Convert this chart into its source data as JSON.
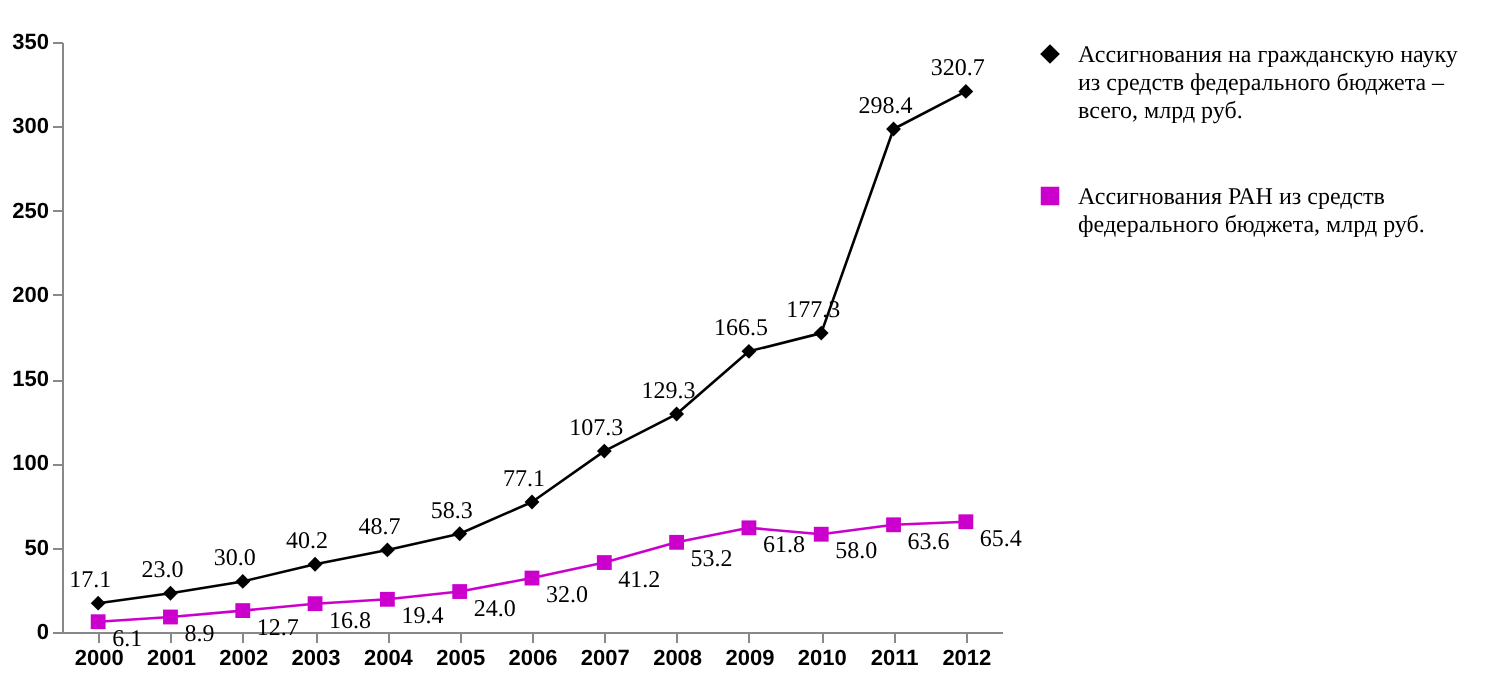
{
  "chart_data": {
    "type": "line",
    "categories": [
      "2000",
      "2001",
      "2002",
      "2003",
      "2004",
      "2005",
      "2006",
      "2007",
      "2008",
      "2009",
      "2010",
      "2011",
      "2012"
    ],
    "series": [
      {
        "name": "Ассигнования на гражданскую науку из средств федерального бюджета – всего, млрд руб.",
        "color": "#000000",
        "marker": "diamond",
        "values": [
          17.1,
          23.0,
          30.0,
          40.2,
          48.7,
          58.3,
          77.1,
          107.3,
          129.3,
          166.5,
          177.3,
          298.4,
          320.7
        ],
        "value_labels": [
          "17.1",
          "23.0",
          "30.0",
          "40.2",
          "48.7",
          "58.3",
          "77.1",
          "107.3",
          "129.3",
          "166.5",
          "177.3",
          "298.4",
          "320.7"
        ]
      },
      {
        "name": "Ассигнования РАН из средств федерального бюджета, млрд руб.",
        "color": "#cc00cc",
        "marker": "square",
        "values": [
          6.1,
          8.9,
          12.7,
          16.8,
          19.4,
          24.0,
          32.0,
          41.2,
          53.2,
          61.8,
          58.0,
          63.6,
          65.4
        ],
        "value_labels": [
          "6.1",
          "8.9",
          "12.7",
          "16.8",
          "19.4",
          "24.0",
          "32.0",
          "41.2",
          "53.2",
          "61.8",
          "58.0",
          "63.6",
          "65.4"
        ]
      }
    ],
    "ylim": [
      0,
      350
    ],
    "yticks": [
      0,
      50,
      100,
      150,
      200,
      250,
      300,
      350
    ],
    "grid": false,
    "legend": "right"
  }
}
